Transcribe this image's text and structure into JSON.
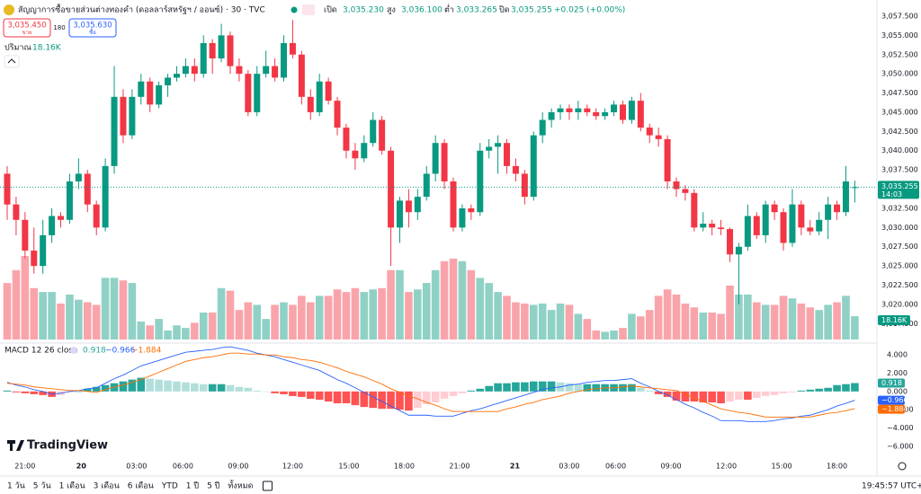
{
  "header": {
    "title": "สัญญาการซื้อขายส่วนต่างทองคำ (ดอลลาร์สหรัฐฯ / ออนซ์) · 30 · TVC",
    "open_label": "เปิด",
    "open": "3,035.230",
    "high_label": "สูง",
    "high": "3,036.100",
    "low_label": "ต่ำ",
    "low": "3,033.265",
    "close_label": "ปิด",
    "close": "3,035.255",
    "change": "+0.025 (+0.00%)"
  },
  "quote": {
    "sell": "3,035.450",
    "sell_label": "ขาย",
    "spread": "180",
    "buy": "3,035.630",
    "buy_label": "ซื้อ"
  },
  "chart_data": [
    {
      "type": "candlestick",
      "open": [
        3037,
        3033,
        3031,
        3027,
        3025,
        3029,
        3031.5,
        3031,
        3036,
        3037,
        3033,
        3030,
        3038,
        3047,
        3042,
        3047,
        3049,
        3046,
        3048.5,
        3049.5,
        3050,
        3051,
        3050,
        3054,
        3052,
        3055,
        3051,
        3050,
        3045,
        3050,
        3051,
        3049.5,
        3054,
        3052.5,
        3047,
        3045,
        3049,
        3046.5,
        3043,
        3040,
        3039,
        3041,
        3044,
        3040,
        3030,
        3033.5,
        3032,
        3034,
        3037,
        3041,
        3036,
        3030,
        3032.5,
        3032,
        3040,
        3040.5,
        3041,
        3038,
        3037,
        3034,
        3042,
        3044,
        3045,
        3045.5,
        3045,
        3045.5,
        3045,
        3044.5,
        3045,
        3046,
        3044,
        3046.5,
        3043,
        3042,
        3041.5,
        3036,
        3035,
        3034.5,
        3030,
        3030.5,
        3030,
        3029.8,
        3026.5,
        3027.5,
        3031.5,
        3029,
        3033,
        3032,
        3028,
        3033,
        3030,
        3029.5,
        3031,
        3033,
        3032,
        3035.23
      ],
      "high": [
        3038,
        3034,
        3032,
        3030,
        3031,
        3032.5,
        3032,
        3037,
        3039,
        3037.5,
        3033.5,
        3039,
        3051,
        3048,
        3048,
        3050,
        3049.5,
        3049,
        3050,
        3051,
        3052,
        3052,
        3055,
        3054.5,
        3056.5,
        3055.5,
        3052,
        3050.5,
        3051,
        3053,
        3052,
        3055,
        3057,
        3053,
        3048,
        3050,
        3049.5,
        3047,
        3043.5,
        3041,
        3042,
        3045,
        3044.5,
        3040.5,
        3034,
        3035,
        3035,
        3038,
        3042,
        3041.5,
        3036.5,
        3033,
        3033,
        3041,
        3041.5,
        3042,
        3041.5,
        3039,
        3037.5,
        3042.5,
        3045,
        3045.5,
        3046,
        3046,
        3046.5,
        3046,
        3045.5,
        3045.5,
        3046.5,
        3046.5,
        3047,
        3047.5,
        3043.5,
        3043,
        3042,
        3036.5,
        3035.5,
        3035,
        3032,
        3031,
        3031,
        3030,
        3028,
        3033,
        3032,
        3033.5,
        3033.5,
        3032.5,
        3035,
        3033.5,
        3031,
        3032,
        3034,
        3033.5,
        3038,
        3036.1
      ],
      "low": [
        3031,
        3029,
        3026,
        3024,
        3024,
        3028,
        3030,
        3030.5,
        3035,
        3032,
        3029,
        3029.5,
        3037,
        3041,
        3041.5,
        3046,
        3045,
        3045.5,
        3047,
        3049,
        3049.5,
        3049,
        3049.5,
        3050,
        3051.5,
        3050,
        3049,
        3044.5,
        3044.5,
        3049.5,
        3049,
        3049,
        3052,
        3046,
        3044,
        3044.5,
        3046,
        3042,
        3039,
        3037.5,
        3038.5,
        3040.5,
        3039.5,
        3025,
        3028,
        3030,
        3031,
        3033.5,
        3036,
        3035,
        3029.5,
        3029.5,
        3031,
        3031.5,
        3039,
        3037,
        3037,
        3036,
        3033,
        3033.5,
        3041,
        3043,
        3044,
        3044,
        3044,
        3044.5,
        3044,
        3044,
        3044.5,
        3043.5,
        3043.5,
        3042.5,
        3041,
        3040.5,
        3035,
        3034,
        3033.5,
        3029.5,
        3029.5,
        3029,
        3029,
        3025.5,
        3020,
        3027,
        3028.5,
        3028,
        3031,
        3027,
        3027.5,
        3029,
        3029,
        3029,
        3028.5,
        3031,
        3031.5,
        3033.265
      ],
      "close": [
        3033,
        3031,
        3027,
        3025,
        3029,
        3031.5,
        3031,
        3036,
        3037,
        3033,
        3030,
        3038,
        3047,
        3042,
        3047,
        3049,
        3046,
        3048.5,
        3049.5,
        3050,
        3051,
        3050,
        3054,
        3052,
        3055,
        3051,
        3050,
        3045,
        3050,
        3051,
        3049.5,
        3054,
        3052.5,
        3047,
        3045,
        3049,
        3046.5,
        3043,
        3040,
        3039,
        3041,
        3044,
        3040,
        3030,
        3033.5,
        3032,
        3034,
        3037,
        3041,
        3036,
        3030,
        3032.5,
        3032,
        3040,
        3040.5,
        3041,
        3038,
        3037,
        3034,
        3042,
        3044,
        3045,
        3045.5,
        3045,
        3045.5,
        3045,
        3044.5,
        3045,
        3046,
        3044,
        3046.5,
        3043,
        3042,
        3041.5,
        3036,
        3035,
        3034.5,
        3030,
        3030.5,
        3030,
        3029.8,
        3026.5,
        3027.5,
        3031.5,
        3029,
        3033,
        3032,
        3028,
        3033,
        3030,
        3029.5,
        3031,
        3033,
        3032,
        3036,
        3035.255
      ],
      "volume": [
        44,
        54,
        65,
        40,
        37,
        37,
        28,
        35,
        31,
        29,
        27,
        48,
        48,
        46,
        44,
        14,
        11,
        16,
        7,
        11,
        9,
        13,
        21,
        21,
        40,
        38,
        23,
        29,
        27,
        16,
        27,
        29,
        27,
        34,
        29,
        34,
        34,
        39,
        37,
        40,
        37,
        39,
        40,
        54,
        54,
        37,
        39,
        44,
        54,
        61,
        63,
        61,
        54,
        48,
        44,
        37,
        34,
        29,
        28,
        27,
        28,
        23,
        28,
        27,
        20,
        16,
        7,
        6,
        7,
        9,
        20,
        18,
        23,
        34,
        39,
        35,
        28,
        25,
        21,
        21,
        20,
        42,
        35,
        35,
        29,
        27,
        27,
        34,
        32,
        28,
        25,
        23,
        27,
        29,
        34,
        18.16
      ],
      "volume_label": "ปริมาณ",
      "volume_value_label": "18.16K",
      "countdown": "14:03",
      "ylim": [
        3015.2,
        3059.6
      ],
      "yticks": [
        {
          "value": 3057.5,
          "label": "3,057.500"
        },
        {
          "value": 3055,
          "label": "3,055.000"
        },
        {
          "value": 3052.5,
          "label": "3,052.500"
        },
        {
          "value": 3050,
          "label": "3,050.000"
        },
        {
          "value": 3047.5,
          "label": "3,047.500"
        },
        {
          "value": 3045,
          "label": "3,045.000"
        },
        {
          "value": 3042.5,
          "label": "3,042.500"
        },
        {
          "value": 3040,
          "label": "3,040.000"
        },
        {
          "value": 3037.5,
          "label": "3,037.500"
        },
        {
          "value": 3035,
          "label": "3,035.000"
        },
        {
          "value": 3032.5,
          "label": "3,032.500"
        },
        {
          "value": 3030,
          "label": "3,030.000"
        },
        {
          "value": 3027.5,
          "label": "3,027.500"
        },
        {
          "value": 3025,
          "label": "3,025.000"
        },
        {
          "value": 3022.5,
          "label": "3,022.500"
        },
        {
          "value": 3020,
          "label": "3,020.000"
        },
        {
          "value": 3017.5,
          "label": "3,017.500"
        }
      ],
      "xticks": [
        {
          "value": 2,
          "label": "21:00"
        },
        {
          "value": 8.3,
          "label": "20"
        },
        {
          "value": 14.5,
          "label": "03:00"
        },
        {
          "value": 19.7,
          "label": "06:00"
        },
        {
          "value": 25.9,
          "label": "09:00"
        },
        {
          "value": 32,
          "label": "12:00"
        },
        {
          "value": 38.3,
          "label": "15:00"
        },
        {
          "value": 44.5,
          "label": "18:00"
        },
        {
          "value": 50.7,
          "label": "21:00"
        },
        {
          "value": 56.9,
          "label": "21"
        },
        {
          "value": 63,
          "label": "03:00"
        },
        {
          "value": 68.2,
          "label": "06:00"
        },
        {
          "value": 74.4,
          "label": "09:00"
        },
        {
          "value": 80.6,
          "label": "12:00"
        },
        {
          "value": 86.8,
          "label": "15:00"
        },
        {
          "value": 93,
          "label": "18:00"
        }
      ],
      "colors": {
        "up": "#089981",
        "down": "#f23645"
      }
    },
    {
      "type": "macd",
      "title": "MACD 12 26 close",
      "histogram": [
        0.1,
        -0.1,
        -0.2,
        -0.3,
        -0.4,
        -0.6,
        -0.4,
        -0.1,
        0.0,
        0.3,
        0.5,
        0.7,
        0.9,
        1.1,
        1.3,
        1.5,
        1.4,
        1.3,
        1.2,
        1.1,
        1.0,
        0.9,
        0.8,
        0.8,
        0.8,
        0.7,
        0.5,
        0.4,
        0.1,
        0.0,
        -0.2,
        -0.3,
        -0.5,
        -0.6,
        -0.8,
        -0.9,
        -1.1,
        -1.3,
        -1.3,
        -1.5,
        -1.7,
        -1.8,
        -1.9,
        -1.9,
        -2.0,
        -2.1,
        -1.8,
        -1.4,
        -1.2,
        -0.8,
        -0.5,
        -0.2,
        0.1,
        0.3,
        0.6,
        0.9,
        0.9,
        1.0,
        1.0,
        1.1,
        1.1,
        1.1,
        1.0,
        0.9,
        0.8,
        0.8,
        0.8,
        0.8,
        0.8,
        0.8,
        0.8,
        0.4,
        0.1,
        -0.3,
        -0.6,
        -1.0,
        -1.1,
        -1.1,
        -1.2,
        -1.2,
        -1.3,
        -1.1,
        -0.9,
        -0.9,
        -0.7,
        -0.5,
        -0.4,
        -0.2,
        -0.1,
        0.1,
        0.2,
        0.3,
        0.4,
        0.7,
        0.8,
        0.918
      ],
      "macd": [
        1.0,
        0.7,
        0.5,
        0.2,
        0.0,
        -0.3,
        -0.2,
        0.0,
        0.1,
        0.3,
        0.4,
        0.9,
        1.4,
        1.8,
        2.3,
        2.8,
        3.1,
        3.4,
        3.7,
        4.0,
        4.3,
        4.4,
        4.5,
        4.6,
        4.8,
        4.9,
        4.7,
        4.5,
        4.2,
        4.0,
        3.8,
        3.5,
        3.2,
        2.9,
        2.6,
        2.3,
        1.8,
        1.3,
        0.9,
        0.4,
        -0.1,
        -0.6,
        -1.1,
        -1.6,
        -2.1,
        -2.6,
        -2.6,
        -2.6,
        -2.7,
        -2.7,
        -2.7,
        -2.4,
        -2.1,
        -1.9,
        -1.6,
        -1.3,
        -1.0,
        -0.7,
        -0.4,
        -0.1,
        0.2,
        0.4,
        0.5,
        0.7,
        0.8,
        1.0,
        1.1,
        1.2,
        1.2,
        1.3,
        1.4,
        0.9,
        0.5,
        0.0,
        -0.4,
        -0.9,
        -1.4,
        -1.8,
        -2.3,
        -2.7,
        -3.2,
        -3.2,
        -3.2,
        -3.3,
        -3.3,
        -3.3,
        -3.2,
        -3.0,
        -2.9,
        -2.7,
        -2.6,
        -2.3,
        -2.0,
        -1.6,
        -1.3,
        -0.966
      ],
      "signal": [
        0.9,
        0.8,
        0.7,
        0.5,
        0.4,
        0.3,
        0.2,
        0.1,
        0.1,
        0.0,
        -0.1,
        0.2,
        0.5,
        0.7,
        1.0,
        1.3,
        1.7,
        2.1,
        2.5,
        2.9,
        3.3,
        3.5,
        3.7,
        3.8,
        4.0,
        4.2,
        4.2,
        4.1,
        4.1,
        4.0,
        4.0,
        3.8,
        3.7,
        3.5,
        3.4,
        3.2,
        2.9,
        2.6,
        2.2,
        1.9,
        1.6,
        1.2,
        0.8,
        0.3,
        -0.1,
        -0.5,
        -0.8,
        -1.2,
        -1.5,
        -1.9,
        -2.2,
        -2.2,
        -2.2,
        -2.2,
        -2.2,
        -2.2,
        -1.9,
        -1.7,
        -1.4,
        -1.2,
        -0.9,
        -0.7,
        -0.5,
        -0.2,
        0.0,
        0.2,
        0.3,
        0.4,
        0.4,
        0.5,
        0.6,
        0.5,
        0.4,
        0.3,
        0.2,
        0.1,
        -0.3,
        -0.7,
        -1.1,
        -1.5,
        -1.9,
        -2.1,
        -2.3,
        -2.4,
        -2.6,
        -2.8,
        -2.8,
        -2.8,
        -2.8,
        -2.8,
        -2.8,
        -2.6,
        -2.4,
        -2.3,
        -2.1,
        -1.884
      ],
      "value_labels": [
        "0.918",
        "−0.966",
        "−1.884"
      ],
      "ylim": [
        -7.3,
        5.2
      ],
      "yticks": [
        {
          "value": 4,
          "label": "4.000"
        },
        {
          "value": 2,
          "label": "2.000"
        },
        {
          "value": 0,
          "label": "0.000"
        },
        {
          "value": -2,
          "label": "−2.000"
        },
        {
          "value": -4,
          "label": "−4.000"
        },
        {
          "value": -6,
          "label": "−6.000"
        }
      ],
      "colors": {
        "macd": "#2962ff",
        "signal": "#ff6d00",
        "up": "#26a69a",
        "up_light": "#b2dfdb",
        "down": "#ff5252",
        "down_light": "#ffcdd2"
      }
    }
  ],
  "footer": {
    "brand": "TradingView",
    "ranges": [
      "1 วัน",
      "5 วัน",
      "1 เดือน",
      "3 เดือน",
      "6 เดือน",
      "YTD",
      "1 ปี",
      "5 ปี",
      "ทั้งหมด"
    ],
    "clock": "19:45:57 UTC+7"
  }
}
